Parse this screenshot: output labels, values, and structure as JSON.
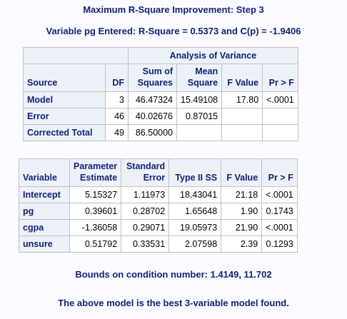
{
  "titles": {
    "step": "Maximum R-Square Improvement: Step 3",
    "entered": "Variable pg Entered: R-Square = 0.5373 and C(p) = -1.9406",
    "bounds": "Bounds on condition number: 1.4149, 11.702",
    "best": "The above model is the best 3-variable model found."
  },
  "anova": {
    "caption": "Analysis of Variance",
    "headers": {
      "source": "Source",
      "df": "DF",
      "ss_top": "Sum of",
      "ss_bottom": "Squares",
      "ms_top": "Mean",
      "ms_bottom": "Square",
      "f": "F Value",
      "p": "Pr > F"
    },
    "rows": [
      {
        "source": "Model",
        "df": "3",
        "ss": "46.47324",
        "ms": "15.49108",
        "f": "17.80",
        "p": "<.0001"
      },
      {
        "source": "Error",
        "df": "46",
        "ss": "40.02676",
        "ms": "0.87015",
        "f": "",
        "p": ""
      },
      {
        "source": "Corrected Total",
        "df": "49",
        "ss": "86.50000",
        "ms": "",
        "f": "",
        "p": ""
      }
    ]
  },
  "params": {
    "headers": {
      "variable": "Variable",
      "est_top": "Parameter",
      "est_bottom": "Estimate",
      "se_top": "Standard",
      "se_bottom": "Error",
      "ss2": "Type II SS",
      "f": "F Value",
      "p": "Pr > F"
    },
    "rows": [
      {
        "variable": "Intercept",
        "est": "5.15327",
        "se": "1.11973",
        "ss2": "18.43041",
        "f": "21.18",
        "p": "<.0001"
      },
      {
        "variable": "pg",
        "est": "0.39601",
        "se": "0.28702",
        "ss2": "1.65648",
        "f": "1.90",
        "p": "0.1743"
      },
      {
        "variable": "cgpa",
        "est": "-1.36058",
        "se": "0.29071",
        "ss2": "19.05973",
        "f": "21.90",
        "p": "<.0001"
      },
      {
        "variable": "unsure",
        "est": "0.51792",
        "se": "0.33531",
        "ss2": "2.07598",
        "f": "2.39",
        "p": "0.1293"
      }
    ]
  },
  "colors": {
    "title": "#112277",
    "header_bg": "#edf2f9",
    "border": "#c1c1c1",
    "page_bg": "#fafbfe"
  }
}
